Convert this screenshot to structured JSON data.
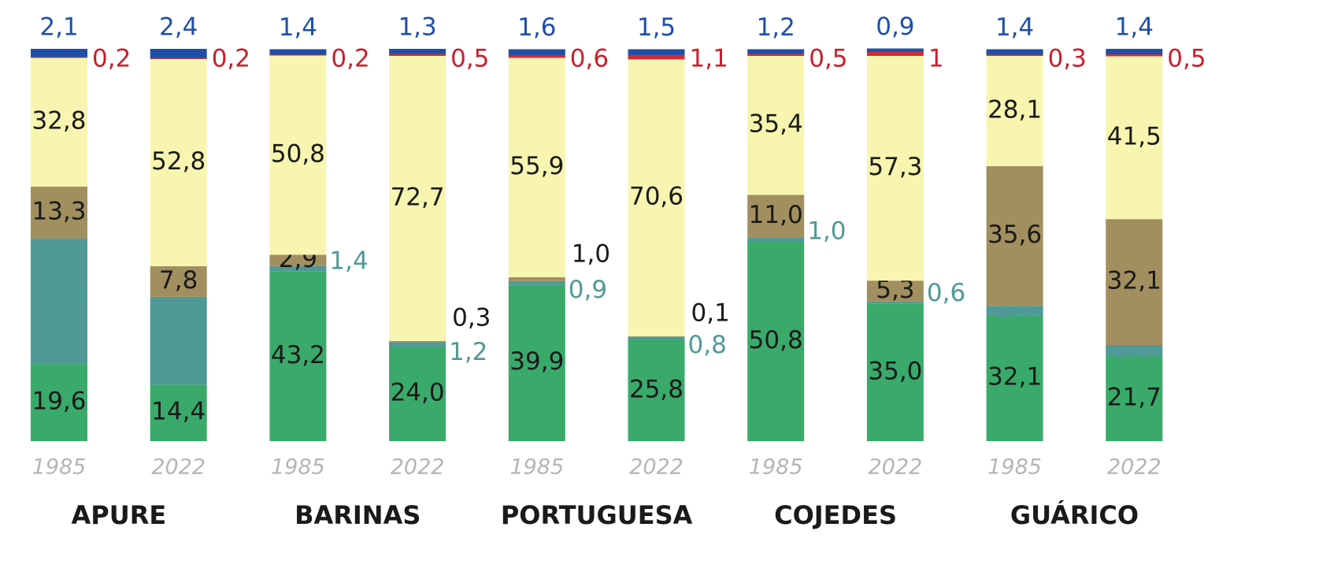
{
  "chart_data": {
    "type": "stacked-bar",
    "groups": [
      "APURE",
      "BARINAS",
      "PORTUGUESA",
      "COJEDES",
      "GUÁRICO"
    ],
    "categories": [
      "1985",
      "2022",
      "1985",
      "2022",
      "1985",
      "2022",
      "1985",
      "2022",
      "1985",
      "2022"
    ],
    "ylim": [
      0,
      100
    ],
    "series": [
      {
        "color": "#3aaa6a",
        "label_color": "#1a1a1a",
        "values": [
          19.6,
          14.4,
          43.2,
          24.0,
          39.9,
          25.8,
          50.8,
          35.0,
          32.1,
          21.7
        ],
        "value_labels": [
          "19,6",
          "14,4",
          "43,2",
          "24,0",
          "39,9",
          "25,8",
          "50,8",
          "35,0",
          "32,1",
          "21,7"
        ]
      },
      {
        "color": "#4f9a96",
        "label_color": "#4f9a96",
        "values": [
          32.0,
          22.4,
          1.4,
          1.2,
          0.9,
          0.8,
          1.0,
          0.6,
          2.4,
          2.8
        ],
        "value_labels": [
          "32,0",
          "22,4",
          "1,4",
          "1,2",
          "0,9",
          "0,8",
          "1,0",
          "0,6",
          "2,4",
          "2,8"
        ]
      },
      {
        "color": "#a28f5f",
        "label_color": "#1a1a1a",
        "values": [
          13.3,
          7.8,
          2.9,
          0.3,
          1.0,
          0.1,
          11.0,
          5.3,
          35.6,
          32.1
        ],
        "value_labels": [
          "13,3",
          "7,8",
          "2,9",
          "0,3",
          "1,0",
          "0,1",
          "11,0",
          "5,3",
          "35,6",
          "32,1"
        ]
      },
      {
        "color": "#f7f5b0",
        "label_color": "#1a1a1a",
        "values": [
          32.8,
          52.8,
          50.8,
          72.7,
          55.9,
          70.6,
          35.4,
          57.3,
          28.1,
          41.5
        ],
        "value_labels": [
          "32,8",
          "52,8",
          "50,8",
          "72,7",
          "55,9",
          "70,6",
          "35,4",
          "57,3",
          "28,1",
          "41,5"
        ]
      },
      {
        "color": "#d42a35",
        "label_color": "#c8202e",
        "values": [
          0.2,
          0.2,
          0.2,
          0.5,
          0.6,
          1.1,
          0.5,
          1,
          0.3,
          0.5
        ],
        "value_labels": [
          "0,2",
          "0,2",
          "0,2",
          "0,5",
          "0,6",
          "1,1",
          "0,5",
          "1",
          "0,3",
          "0,5"
        ]
      },
      {
        "color": "#1f4fa8",
        "label_color": "#1f4fa8",
        "values": [
          2.1,
          2.4,
          1.4,
          1.3,
          1.6,
          1.5,
          1.2,
          0.9,
          1.4,
          1.4
        ],
        "value_labels": [
          "2,1",
          "2,4",
          "1,4",
          "1,3",
          "1,6",
          "1,5",
          "1,2",
          "0,9",
          "1,4",
          "1,4"
        ]
      }
    ]
  }
}
